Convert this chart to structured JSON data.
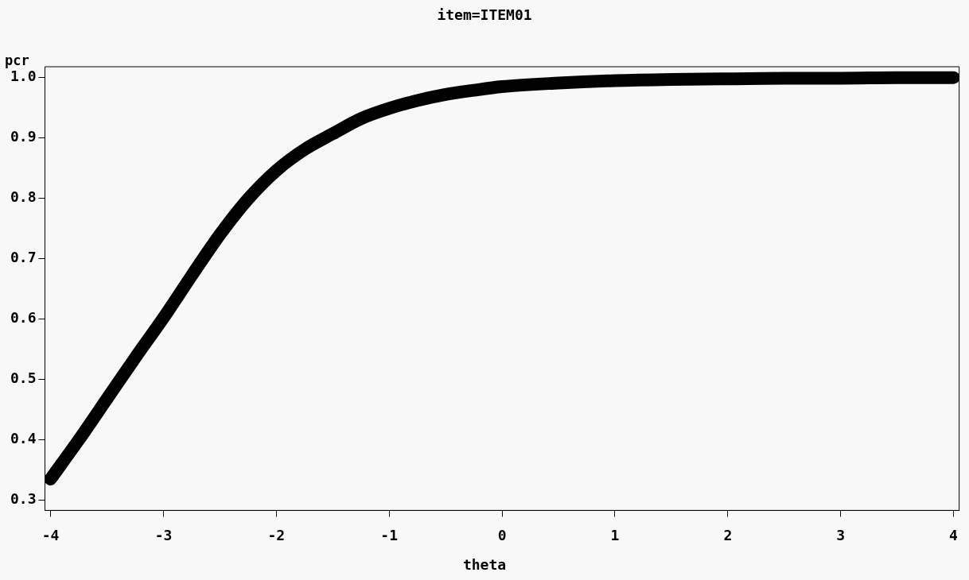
{
  "chart_data": {
    "type": "line",
    "title": "item=ITEM01",
    "xlabel": "theta",
    "ylabel": "pcr",
    "x": [
      -4,
      -3.75,
      -3.5,
      -3.25,
      -3,
      -2.75,
      -2.5,
      -2.25,
      -2,
      -1.75,
      -1.5,
      -1.25,
      -1,
      -0.75,
      -0.5,
      -0.25,
      0,
      0.5,
      1,
      1.5,
      2,
      2.5,
      3,
      3.5,
      4
    ],
    "series": [
      {
        "color": "#000000",
        "values": [
          0.335,
          0.4,
          0.468,
          0.536,
          0.602,
          0.672,
          0.74,
          0.799,
          0.846,
          0.881,
          0.907,
          0.932,
          0.949,
          0.962,
          0.972,
          0.979,
          0.985,
          0.991,
          0.995,
          0.997,
          0.998,
          0.999,
          0.999,
          1.0,
          1.0
        ]
      }
    ],
    "xlim": [
      -4.05,
      4.05
    ],
    "xticks": [
      -4,
      -3,
      -2,
      -1,
      0,
      1,
      2,
      3,
      4
    ],
    "ylim": [
      0.283,
      1.018
    ],
    "yticks": [
      {
        "value": 0.3,
        "label": "0.3"
      },
      {
        "value": 0.4,
        "label": "0.4"
      },
      {
        "value": 0.5,
        "label": "0.5"
      },
      {
        "value": 0.6,
        "label": "0.6"
      },
      {
        "value": 0.7,
        "label": "0.7"
      },
      {
        "value": 0.8,
        "label": "0.8"
      },
      {
        "value": 0.9,
        "label": "0.9"
      },
      {
        "value": 1.0,
        "label": "1.0"
      }
    ],
    "grid": false,
    "legend": false,
    "marker": "none",
    "line_style": "solid"
  }
}
